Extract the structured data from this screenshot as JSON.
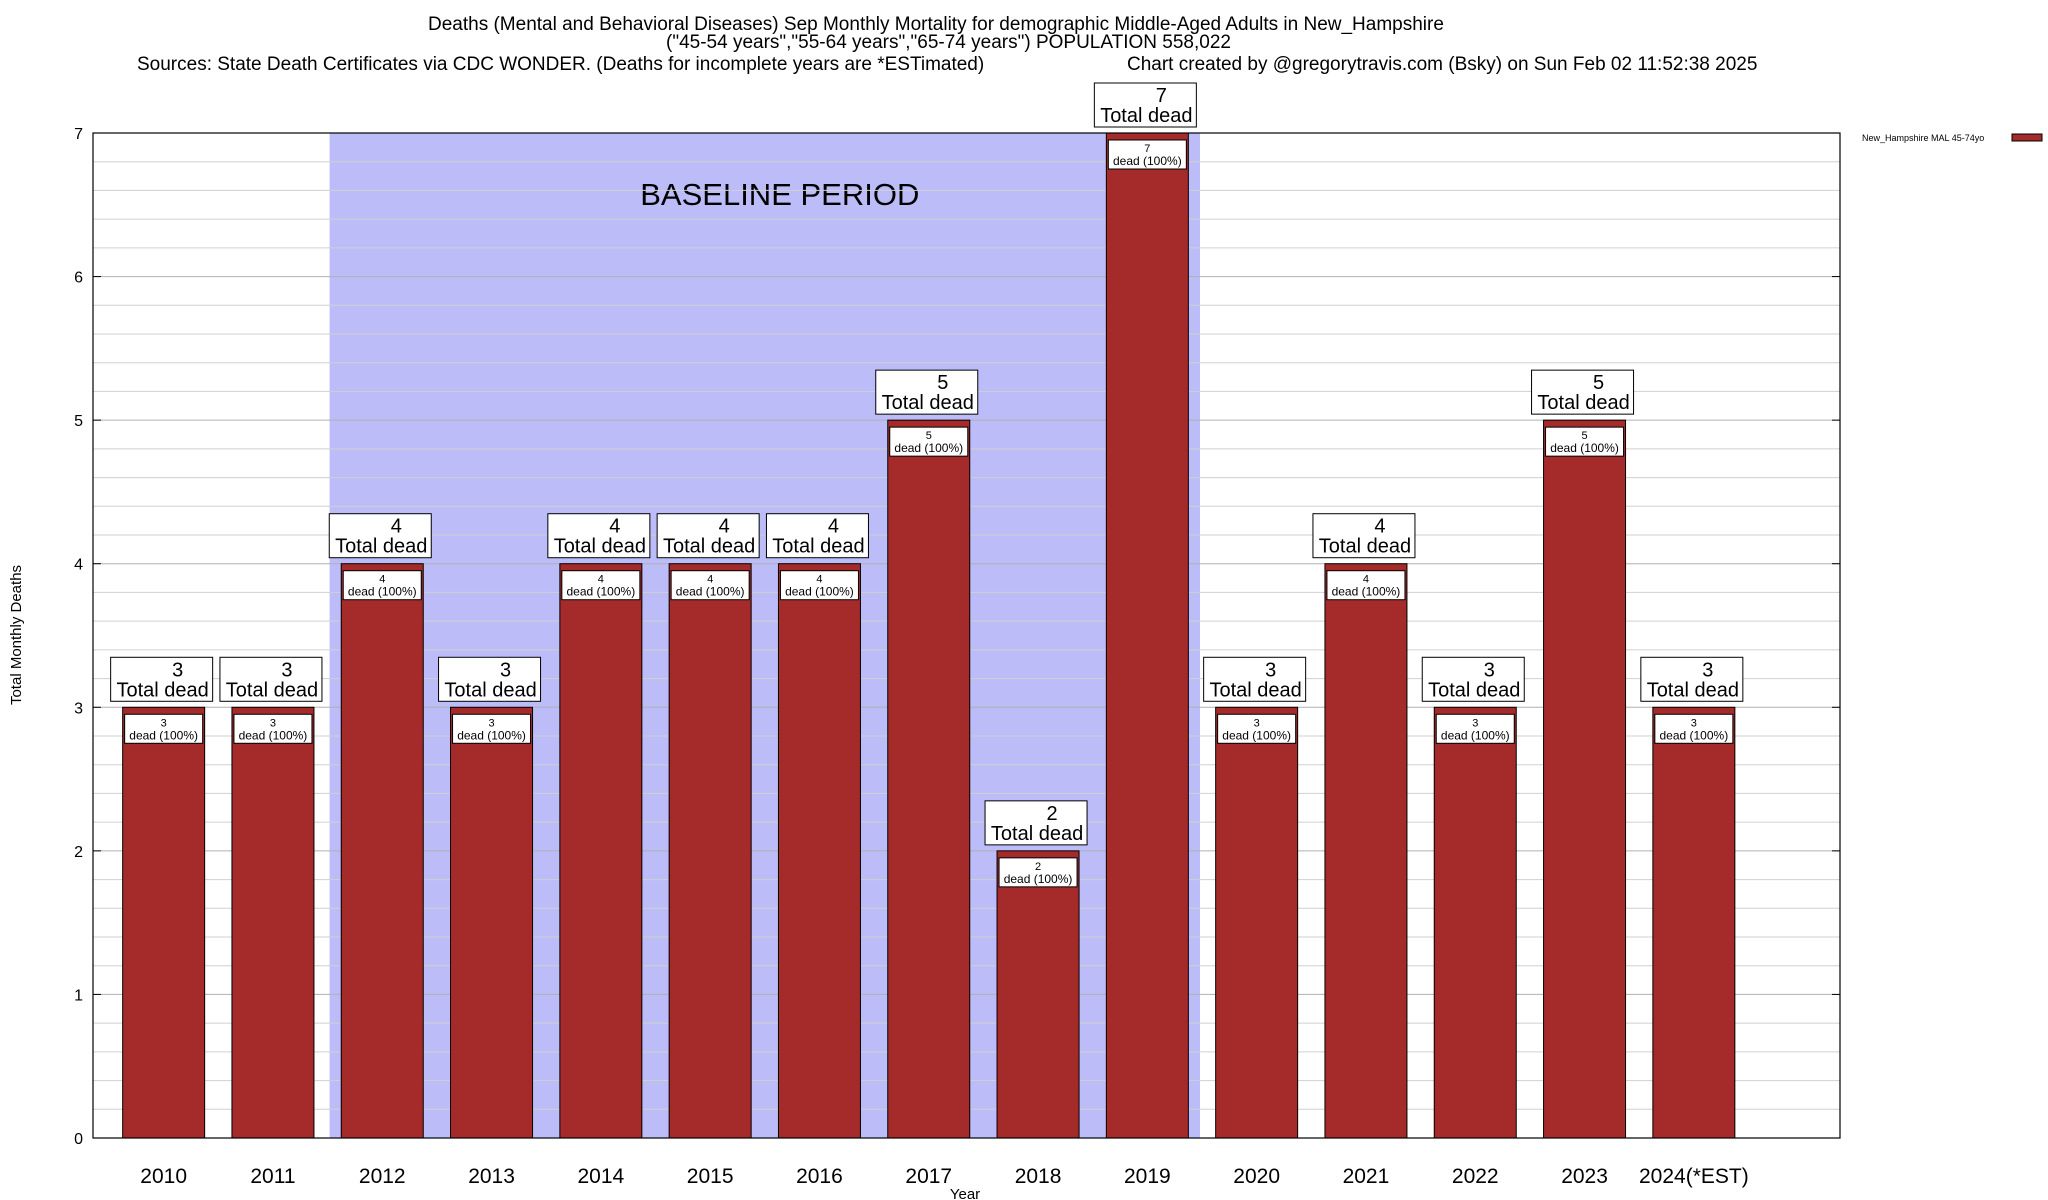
{
  "titles": {
    "line1": "Deaths (Mental and Behavioral Diseases) Sep Monthly Mortality for demographic Middle-Aged Adults in New_Hampshire",
    "line2": "(\"45-54 years\",\"55-64 years\",\"65-74 years\") POPULATION 558,022",
    "line3_left": "Sources: State Death Certificates via CDC WONDER. (Deaths for incomplete years are *ESTimated)",
    "line3_right": "Chart created by @gregorytravis.com (Bsky) on Sun Feb 02 11:52:38 2025"
  },
  "chart_data": {
    "type": "bar",
    "xlabel": "Year",
    "ylabel": "Total Monthly Deaths",
    "ylim": [
      0,
      7
    ],
    "y_ticks": [
      "0",
      "1",
      "2",
      "3",
      "4",
      "5",
      "6",
      "7"
    ],
    "categories": [
      "2010",
      "2011",
      "2012",
      "2013",
      "2014",
      "2015",
      "2016",
      "2017",
      "2018",
      "2019",
      "2020",
      "2021",
      "2022",
      "2023",
      "2024(*EST)"
    ],
    "series": [
      {
        "name": "New_Hampshire MAL 45-74yo",
        "values": [
          3,
          3,
          4,
          3,
          4,
          4,
          4,
          5,
          2,
          7,
          3,
          4,
          3,
          5,
          3
        ],
        "color": "#a52a2a"
      }
    ],
    "top_labels": {
      "values": [
        "3",
        "3",
        "4",
        "3",
        "4",
        "4",
        "4",
        "5",
        "2",
        "7",
        "3",
        "4",
        "3",
        "5",
        "3"
      ],
      "caption": "Total dead"
    },
    "inner_labels": {
      "values": [
        "3",
        "3",
        "4",
        "3",
        "4",
        "4",
        "4",
        "5",
        "2",
        "7",
        "3",
        "4",
        "3",
        "5",
        "3"
      ],
      "caption": "dead (100%)"
    },
    "baseline": {
      "label": "BASELINE PERIOD",
      "from_category": "2012",
      "to_category": "2019",
      "color": "#bcbcf8"
    },
    "grid": true,
    "legend_position": "top-right",
    "colors": {
      "bar": "#a52a2a",
      "baseline_band": "#bcbcf8",
      "grid": "#c0c0c0"
    }
  }
}
